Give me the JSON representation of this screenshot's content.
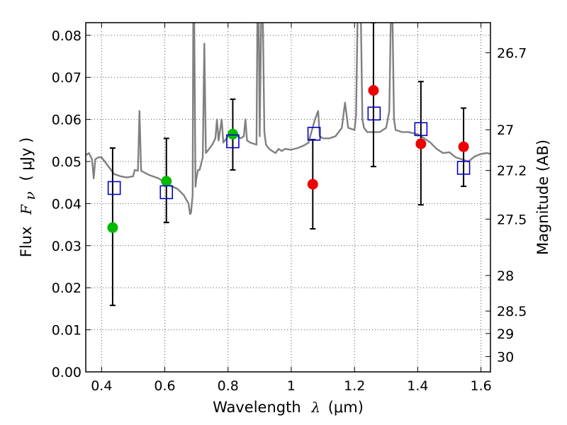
{
  "chart_data": {
    "type": "scatter",
    "xlabel": {
      "prefix": "Wavelength",
      "symbol": "λ",
      "unit": "(μm)"
    },
    "ylabel": {
      "prefix": "Flux",
      "symbol": "F",
      "subscript": "ν",
      "unit": "( μJy )"
    },
    "ylabel_right": "Magnitude (AB)",
    "xlim": [
      0.35,
      1.63
    ],
    "ylim": [
      0.0,
      0.083
    ],
    "grid": true,
    "x_ticks": [
      {
        "value": 0.4,
        "label": "0.4"
      },
      {
        "value": 0.6,
        "label": "0.6"
      },
      {
        "value": 0.8,
        "label": "0.8"
      },
      {
        "value": 1.0,
        "label": "1"
      },
      {
        "value": 1.2,
        "label": "1.2"
      },
      {
        "value": 1.4,
        "label": "1.4"
      },
      {
        "value": 1.6,
        "label": "1.6"
      }
    ],
    "y_ticks": [
      {
        "value": 0.0,
        "label": "0.00"
      },
      {
        "value": 0.01,
        "label": "0.01"
      },
      {
        "value": 0.02,
        "label": "0.02"
      },
      {
        "value": 0.03,
        "label": "0.03"
      },
      {
        "value": 0.04,
        "label": "0.04"
      },
      {
        "value": 0.05,
        "label": "0.05"
      },
      {
        "value": 0.06,
        "label": "0.06"
      },
      {
        "value": 0.07,
        "label": "0.07"
      },
      {
        "value": 0.08,
        "label": "0.08"
      }
    ],
    "right_ticks": [
      {
        "value": 26.7,
        "label": "26.7"
      },
      {
        "value": 27.0,
        "label": "27"
      },
      {
        "value": 27.2,
        "label": "27.2"
      },
      {
        "value": 27.5,
        "label": "27.5"
      },
      {
        "value": 28.0,
        "label": "28"
      },
      {
        "value": 28.5,
        "label": "28.5"
      },
      {
        "value": 29.0,
        "label": "29"
      },
      {
        "value": 30.0,
        "label": "30"
      }
    ],
    "colors": {
      "spectrum": "#808080",
      "green_points": "#00bb00",
      "red_points": "#ee0000",
      "model_squares": "#0000cc",
      "errorbar": "#000000",
      "grid": "#555555"
    },
    "series": [
      {
        "marker": "circle",
        "color": "#00bb00",
        "points": [
          {
            "x": 0.435,
            "y": 0.0343,
            "err_low": 0.0158,
            "err_high": 0.0532
          },
          {
            "x": 0.605,
            "y": 0.0453,
            "err_low": 0.0355,
            "err_high": 0.0555
          },
          {
            "x": 0.815,
            "y": 0.0565,
            "err_low": 0.048,
            "err_high": 0.0648
          }
        ]
      },
      {
        "marker": "circle",
        "color": "#ee0000",
        "points": [
          {
            "x": 1.068,
            "y": 0.0446,
            "err_low": 0.034,
            "err_high": 0.0552
          },
          {
            "x": 1.26,
            "y": 0.0669,
            "err_low": 0.0488,
            "err_high": 0.083
          },
          {
            "x": 1.41,
            "y": 0.0542,
            "err_low": 0.0397,
            "err_high": 0.069
          },
          {
            "x": 1.545,
            "y": 0.0535,
            "err_low": 0.0441,
            "err_high": 0.0627
          }
        ]
      },
      {
        "marker": "square",
        "color": "#0000cc",
        "points": [
          {
            "x": 0.44,
            "y": 0.0437
          },
          {
            "x": 0.605,
            "y": 0.0427
          },
          {
            "x": 0.815,
            "y": 0.0548
          },
          {
            "x": 1.072,
            "y": 0.0566
          },
          {
            "x": 1.262,
            "y": 0.0614
          },
          {
            "x": 1.41,
            "y": 0.0577
          },
          {
            "x": 1.545,
            "y": 0.0485
          }
        ]
      }
    ],
    "spectrum": [
      [
        0.35,
        0.0515
      ],
      [
        0.36,
        0.052
      ],
      [
        0.37,
        0.0505
      ],
      [
        0.375,
        0.046
      ],
      [
        0.38,
        0.0505
      ],
      [
        0.39,
        0.051
      ],
      [
        0.4,
        0.051
      ],
      [
        0.41,
        0.05
      ],
      [
        0.42,
        0.049
      ],
      [
        0.43,
        0.048
      ],
      [
        0.44,
        0.047
      ],
      [
        0.46,
        0.0465
      ],
      [
        0.48,
        0.0462
      ],
      [
        0.5,
        0.0465
      ],
      [
        0.505,
        0.048
      ],
      [
        0.515,
        0.0478
      ],
      [
        0.52,
        0.062
      ],
      [
        0.525,
        0.0478
      ],
      [
        0.55,
        0.0468
      ],
      [
        0.58,
        0.046
      ],
      [
        0.6,
        0.045
      ],
      [
        0.62,
        0.0442
      ],
      [
        0.64,
        0.0435
      ],
      [
        0.66,
        0.042
      ],
      [
        0.675,
        0.04
      ],
      [
        0.68,
        0.0375
      ],
      [
        0.683,
        0.0378
      ],
      [
        0.688,
        0.042
      ],
      [
        0.69,
        0.085
      ],
      [
        0.693,
        0.085
      ],
      [
        0.697,
        0.044
      ],
      [
        0.7,
        0.046
      ],
      [
        0.705,
        0.048
      ],
      [
        0.71,
        0.048
      ],
      [
        0.72,
        0.051
      ],
      [
        0.725,
        0.078
      ],
      [
        0.73,
        0.052
      ],
      [
        0.75,
        0.054
      ],
      [
        0.76,
        0.0555
      ],
      [
        0.765,
        0.06
      ],
      [
        0.77,
        0.055
      ],
      [
        0.78,
        0.06
      ],
      [
        0.785,
        0.0545
      ],
      [
        0.8,
        0.056
      ],
      [
        0.81,
        0.0565
      ],
      [
        0.82,
        0.0565
      ],
      [
        0.83,
        0.056
      ],
      [
        0.84,
        0.0555
      ],
      [
        0.85,
        0.056
      ],
      [
        0.855,
        0.06
      ],
      [
        0.86,
        0.055
      ],
      [
        0.87,
        0.0545
      ],
      [
        0.89,
        0.054
      ],
      [
        0.893,
        0.085
      ],
      [
        0.897,
        0.085
      ],
      [
        0.9,
        0.056
      ],
      [
        0.905,
        0.085
      ],
      [
        0.91,
        0.085
      ],
      [
        0.915,
        0.057
      ],
      [
        0.92,
        0.054
      ],
      [
        0.93,
        0.053
      ],
      [
        0.94,
        0.0525
      ],
      [
        0.95,
        0.052
      ],
      [
        0.96,
        0.053
      ],
      [
        0.97,
        0.0525
      ],
      [
        0.98,
        0.053
      ],
      [
        1.0,
        0.0528
      ],
      [
        1.02,
        0.0532
      ],
      [
        1.04,
        0.0538
      ],
      [
        1.055,
        0.0545
      ],
      [
        1.06,
        0.056
      ],
      [
        1.075,
        0.06
      ],
      [
        1.085,
        0.062
      ],
      [
        1.09,
        0.056
      ],
      [
        1.1,
        0.0555
      ],
      [
        1.12,
        0.0555
      ],
      [
        1.14,
        0.056
      ],
      [
        1.16,
        0.058
      ],
      [
        1.17,
        0.064
      ],
      [
        1.18,
        0.058
      ],
      [
        1.2,
        0.0575
      ],
      [
        1.205,
        0.061
      ],
      [
        1.21,
        0.085
      ],
      [
        1.22,
        0.085
      ],
      [
        1.225,
        0.06
      ],
      [
        1.23,
        0.058
      ],
      [
        1.24,
        0.057
      ],
      [
        1.26,
        0.057
      ],
      [
        1.28,
        0.057
      ],
      [
        1.3,
        0.058
      ],
      [
        1.31,
        0.062
      ],
      [
        1.315,
        0.085
      ],
      [
        1.32,
        0.085
      ],
      [
        1.325,
        0.06
      ],
      [
        1.33,
        0.0575
      ],
      [
        1.35,
        0.057
      ],
      [
        1.37,
        0.057
      ],
      [
        1.4,
        0.0565
      ],
      [
        1.42,
        0.0555
      ],
      [
        1.44,
        0.0545
      ],
      [
        1.46,
        0.053
      ],
      [
        1.48,
        0.052
      ],
      [
        1.5,
        0.0522
      ],
      [
        1.52,
        0.051
      ],
      [
        1.54,
        0.0505
      ],
      [
        1.56,
        0.05
      ],
      [
        1.58,
        0.0512
      ],
      [
        1.6,
        0.0518
      ],
      [
        1.62,
        0.052
      ],
      [
        1.63,
        0.0518
      ]
    ]
  }
}
